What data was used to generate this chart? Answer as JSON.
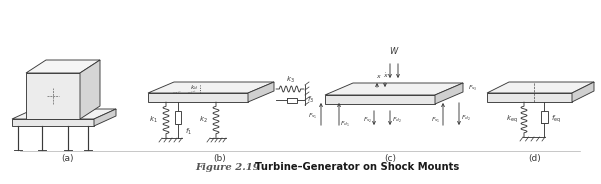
{
  "fig_width": 6.01,
  "fig_height": 1.84,
  "dpi": 100,
  "bg_color": "#ffffff",
  "line_color": "#3a3a3a",
  "caption_bold": "Figure 2.19",
  "caption_normal": "  Turbine–Generator on Shock Mounts",
  "labels_a": "(a)",
  "labels_b": "(b)",
  "labels_c": "(c)",
  "labels_d": "(d)",
  "label_fontsize": 6.5,
  "caption_fontsize": 7.2,
  "line_width": 0.65
}
